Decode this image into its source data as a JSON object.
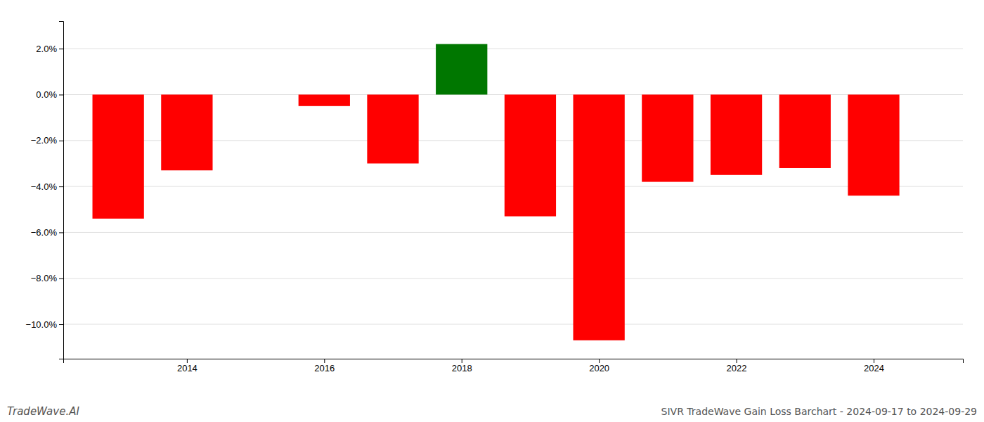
{
  "chart_data": {
    "type": "bar",
    "title": "SIVR TradeWave Gain Loss Barchart - 2024-09-17 to 2024-09-29",
    "annotations": [
      "TradeWave.AI"
    ],
    "x": [
      2013,
      2014,
      2016,
      2017,
      2018,
      2019,
      2020,
      2021,
      2022,
      2023,
      2024
    ],
    "values": [
      -5.4,
      -3.3,
      -0.5,
      -3.0,
      2.2,
      -5.3,
      -10.7,
      -3.8,
      -3.5,
      -3.2,
      -4.4
    ],
    "colors": [
      "#ff0000",
      "#ff0000",
      "#ff0000",
      "#ff0000",
      "#007700",
      "#ff0000",
      "#ff0000",
      "#ff0000",
      "#ff0000",
      "#ff0000",
      "#ff0000"
    ],
    "xlim": [
      2012.2,
      2025.3
    ],
    "xticks": [
      2014,
      2016,
      2018,
      2020,
      2022,
      2024
    ],
    "ylim": [
      -11.5,
      3.2
    ],
    "yticks": [
      {
        "value": 2.0,
        "label": "2.0%"
      },
      {
        "value": 0.0,
        "label": "0.0%"
      },
      {
        "value": -2.0,
        "label": "−2.0%"
      },
      {
        "value": -4.0,
        "label": "−4.0%"
      },
      {
        "value": -6.0,
        "label": "−6.0%"
      },
      {
        "value": -8.0,
        "label": "−8.0%"
      },
      {
        "value": -10.0,
        "label": "−10.0%"
      }
    ],
    "grid": "y"
  }
}
